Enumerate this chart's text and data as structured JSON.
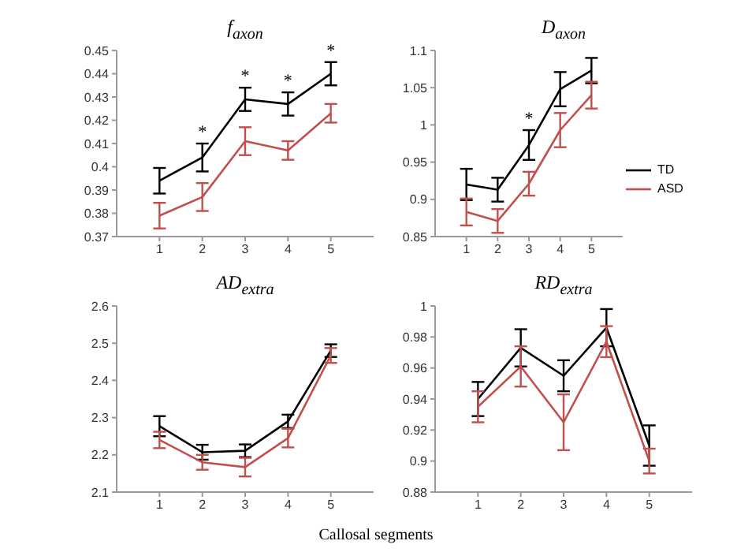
{
  "chart_data": [
    {
      "type": "line",
      "title": "f$_{axon}$",
      "x": [
        1,
        2,
        3,
        4,
        5
      ],
      "xlim": [
        0,
        6
      ],
      "xticks": [
        1,
        2,
        3,
        4,
        5
      ],
      "ylim": [
        0.37,
        0.45
      ],
      "yticks": [
        0.37,
        0.38,
        0.39,
        0.4,
        0.41,
        0.42,
        0.43,
        0.44,
        0.45
      ],
      "grid": false,
      "legend": false,
      "marker": "none",
      "series": [
        {
          "color": "#000000",
          "values": [
            0.394,
            0.404,
            0.429,
            0.427,
            0.44
          ],
          "errors": [
            0.0055,
            0.006,
            0.005,
            0.005,
            0.005
          ],
          "value_labels": [
            null,
            "*",
            "*",
            "*",
            "*"
          ]
        },
        {
          "color": "#c0504d",
          "values": [
            0.379,
            0.387,
            0.411,
            0.407,
            0.423
          ],
          "errors": [
            0.0055,
            0.006,
            0.006,
            0.004,
            0.004
          ]
        }
      ]
    },
    {
      "type": "line",
      "title": "D$_{axon}$",
      "x": [
        1,
        2,
        3,
        4,
        5
      ],
      "xlim": [
        0,
        6
      ],
      "xticks": [
        1,
        2,
        3,
        4,
        5
      ],
      "ylim": [
        0.85,
        1.1
      ],
      "yticks": [
        0.85,
        0.9,
        0.95,
        1,
        1.05,
        1.1
      ],
      "grid": false,
      "legend": "right",
      "marker": "none",
      "series": [
        {
          "name": "TD",
          "color": "#000000",
          "values": [
            0.92,
            0.913,
            0.973,
            1.048,
            1.073
          ],
          "errors": [
            0.021,
            0.016,
            0.02,
            0.023,
            0.017
          ],
          "value_labels": [
            null,
            null,
            "*",
            null,
            null
          ]
        },
        {
          "name": "ASD",
          "color": "#c0504d",
          "values": [
            0.883,
            0.871,
            0.921,
            0.993,
            1.04
          ],
          "errors": [
            0.018,
            0.016,
            0.016,
            0.023,
            0.018
          ]
        }
      ]
    },
    {
      "type": "line",
      "title": "AD$_{extra}$",
      "xlabel": "Callosal segments",
      "x": [
        1,
        2,
        3,
        4,
        5
      ],
      "xlim": [
        0,
        6
      ],
      "xticks": [
        1,
        2,
        3,
        4,
        5
      ],
      "ylim": [
        2.1,
        2.6
      ],
      "yticks": [
        2.1,
        2.2,
        2.3,
        2.4,
        2.5,
        2.6
      ],
      "grid": false,
      "legend": false,
      "marker": "none",
      "series": [
        {
          "color": "#000000",
          "values": [
            2.277,
            2.207,
            2.211,
            2.29,
            2.48
          ],
          "errors": [
            0.027,
            0.02,
            0.017,
            0.018,
            0.017
          ]
        },
        {
          "color": "#c0504d",
          "values": [
            2.24,
            2.18,
            2.167,
            2.245,
            2.467
          ],
          "errors": [
            0.022,
            0.02,
            0.025,
            0.025,
            0.02
          ]
        }
      ]
    },
    {
      "type": "line",
      "title": "RD$_{extra}$",
      "x": [
        1,
        2,
        3,
        4,
        5
      ],
      "xlim": [
        0,
        6
      ],
      "xticks": [
        1,
        2,
        3,
        4,
        5
      ],
      "ylim": [
        0.88,
        1
      ],
      "yticks": [
        0.88,
        0.9,
        0.92,
        0.94,
        0.96,
        0.98,
        1
      ],
      "grid": false,
      "legend": false,
      "marker": "none",
      "series": [
        {
          "color": "#000000",
          "values": [
            0.94,
            0.973,
            0.955,
            0.986,
            0.91
          ],
          "errors": [
            0.011,
            0.012,
            0.01,
            0.012,
            0.013
          ]
        },
        {
          "color": "#c0504d",
          "values": [
            0.935,
            0.961,
            0.925,
            0.977,
            0.9
          ],
          "errors": [
            0.01,
            0.013,
            0.018,
            0.01,
            0.008
          ]
        }
      ]
    }
  ]
}
